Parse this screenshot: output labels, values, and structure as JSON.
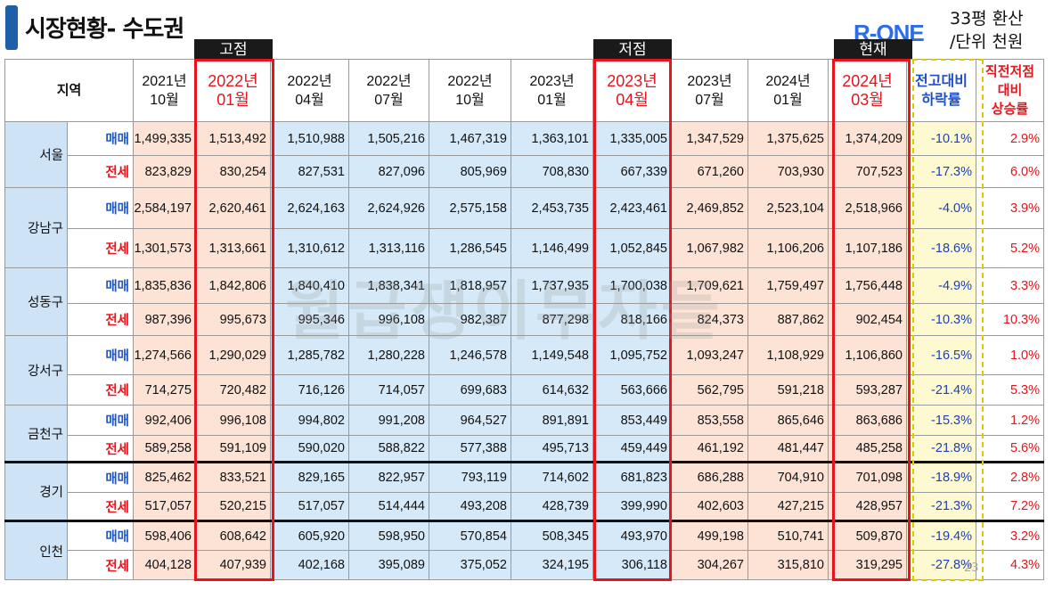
{
  "title": "시장현황- 수도권",
  "logo": "R-ONE",
  "unit_lines": [
    "33평 환산",
    "/단위 천원"
  ],
  "tags": {
    "high": "고점",
    "low": "저점",
    "current": "현재"
  },
  "headers": {
    "region": "지역",
    "periods": [
      [
        "2021년",
        "10월"
      ],
      [
        "2022년",
        "01월"
      ],
      [
        "2022년",
        "04월"
      ],
      [
        "2022년",
        "07월"
      ],
      [
        "2022년",
        "10월"
      ],
      [
        "2023년",
        "01월"
      ],
      [
        "2023년",
        "04월"
      ],
      [
        "2023년",
        "07월"
      ],
      [
        "2024년",
        "01월"
      ],
      [
        "2024년",
        "03월"
      ]
    ],
    "drop_from_peak": [
      "전고대비",
      "하락률"
    ],
    "rise_from_low": [
      "직전저점",
      "대비",
      "상승률"
    ]
  },
  "kinds": {
    "buy": "매매",
    "rent": "전세"
  },
  "regions": [
    {
      "name": "서울",
      "buy": [
        "1,499,335",
        "1,513,492",
        "1,510,988",
        "1,505,216",
        "1,467,319",
        "1,363,101",
        "1,335,005",
        "1,347,529",
        "1,375,625",
        "1,374,209",
        "-10.1%",
        "2.9%"
      ],
      "rent": [
        "823,829",
        "830,254",
        "827,531",
        "827,096",
        "805,969",
        "708,830",
        "667,339",
        "671,260",
        "703,930",
        "707,523",
        "-17.3%",
        "6.0%"
      ]
    },
    {
      "name": "강남구",
      "buy": [
        "2,584,197",
        "2,620,461",
        "2,624,163",
        "2,624,926",
        "2,575,158",
        "2,453,735",
        "2,423,461",
        "2,469,852",
        "2,523,104",
        "2,518,966",
        "-4.0%",
        "3.9%"
      ],
      "rent": [
        "1,301,573",
        "1,313,661",
        "1,310,612",
        "1,313,116",
        "1,286,545",
        "1,146,499",
        "1,052,845",
        "1,067,982",
        "1,106,206",
        "1,107,186",
        "-18.6%",
        "5.2%"
      ]
    },
    {
      "name": "성동구",
      "buy": [
        "1,835,836",
        "1,842,806",
        "1,840,410",
        "1,838,341",
        "1,818,957",
        "1,737,935",
        "1,700,038",
        "1,709,621",
        "1,759,497",
        "1,756,448",
        "-4.9%",
        "3.3%"
      ],
      "rent": [
        "987,396",
        "995,673",
        "995,346",
        "996,108",
        "982,387",
        "877,298",
        "818,166",
        "824,373",
        "887,862",
        "902,454",
        "-10.3%",
        "10.3%"
      ]
    },
    {
      "name": "강서구",
      "buy": [
        "1,274,566",
        "1,290,029",
        "1,285,782",
        "1,280,228",
        "1,246,578",
        "1,149,548",
        "1,095,752",
        "1,093,247",
        "1,108,929",
        "1,106,860",
        "-16.5%",
        "1.0%"
      ],
      "rent": [
        "714,275",
        "720,482",
        "716,126",
        "714,057",
        "699,683",
        "614,632",
        "563,666",
        "562,795",
        "591,218",
        "593,287",
        "-21.4%",
        "5.3%"
      ]
    },
    {
      "name": "금천구",
      "buy": [
        "992,406",
        "996,108",
        "994,802",
        "991,208",
        "964,527",
        "891,891",
        "853,449",
        "853,558",
        "865,646",
        "863,686",
        "-15.3%",
        "1.2%"
      ],
      "rent": [
        "589,258",
        "591,109",
        "590,020",
        "588,822",
        "577,388",
        "495,713",
        "459,449",
        "461,192",
        "481,447",
        "485,258",
        "-21.8%",
        "5.6%"
      ]
    },
    {
      "name": "경기",
      "buy": [
        "825,462",
        "833,521",
        "829,165",
        "822,957",
        "793,119",
        "714,602",
        "681,823",
        "686,288",
        "704,910",
        "701,098",
        "-18.9%",
        "2.8%"
      ],
      "rent": [
        "517,057",
        "520,215",
        "517,057",
        "514,444",
        "493,208",
        "428,739",
        "399,990",
        "402,603",
        "427,215",
        "428,957",
        "-21.3%",
        "7.2%"
      ]
    },
    {
      "name": "인천",
      "buy": [
        "598,406",
        "608,642",
        "605,920",
        "598,950",
        "570,854",
        "508,345",
        "493,970",
        "499,198",
        "510,741",
        "509,870",
        "-19.4%",
        "3.2%"
      ],
      "rent": [
        "404,128",
        "407,939",
        "402,168",
        "395,089",
        "375,052",
        "324,195",
        "306,118",
        "304,267",
        "315,810",
        "319,295",
        "-27.8%",
        "4.3%"
      ]
    }
  ],
  "watermark": "월급쟁이부자들",
  "page_number": "23",
  "colors": {
    "peak_cell": "#fde3d5",
    "low_cell": "#d5e9f8",
    "region_cell": "#cfe3f6",
    "highlight_red": "#e8141b",
    "accent_blue": "#1f57c9"
  }
}
